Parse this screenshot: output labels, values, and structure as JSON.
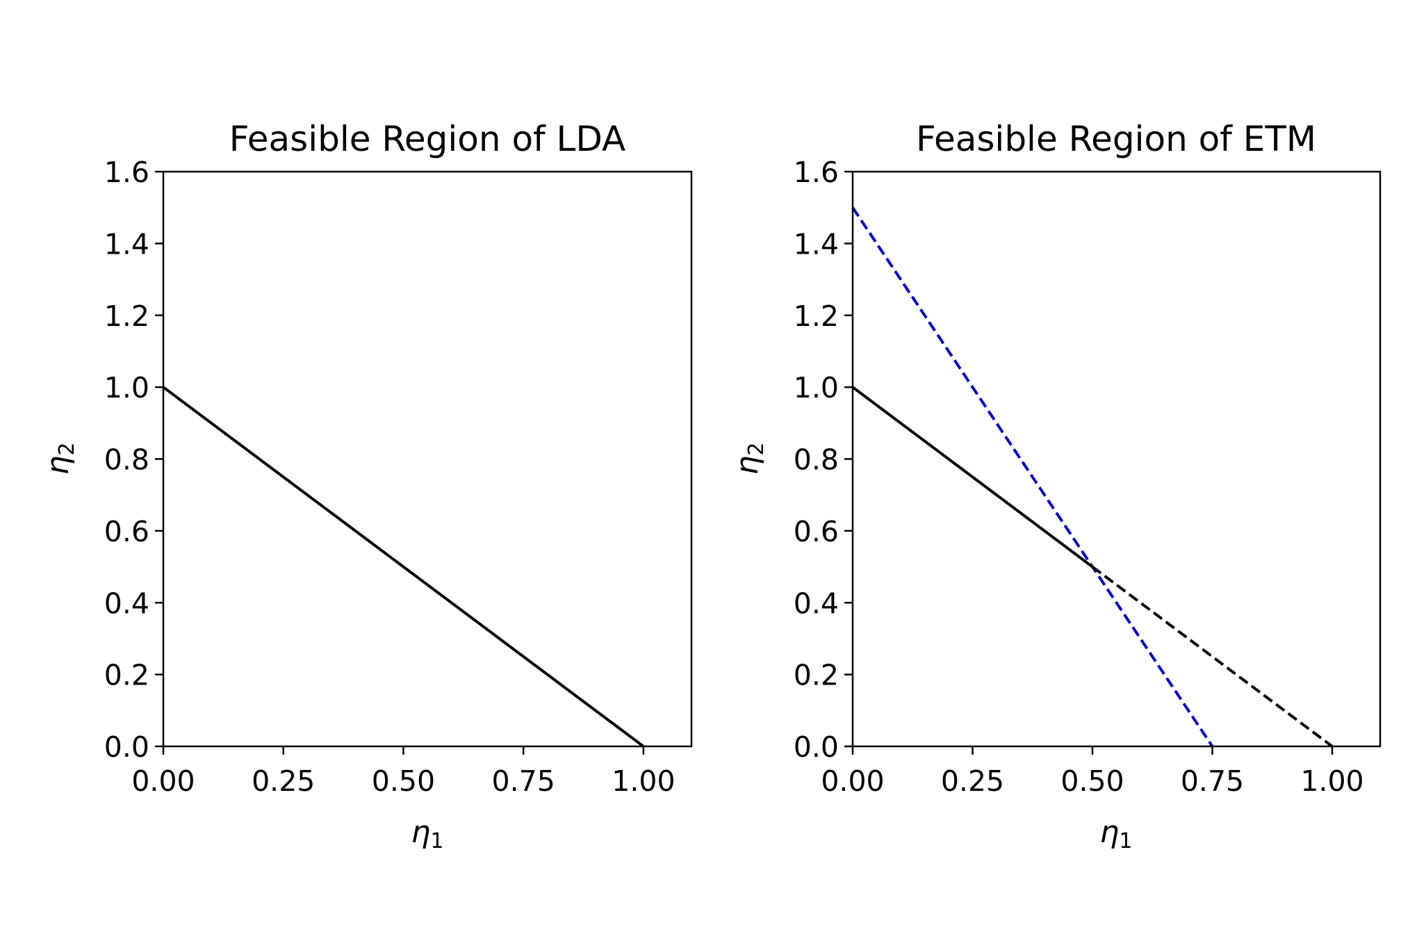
{
  "chart_data": [
    {
      "type": "line",
      "title": "Feasible Region of LDA",
      "xlabel": "η",
      "xlabel_sub": "1",
      "ylabel": "η",
      "ylabel_sub": "2",
      "xlim": [
        0,
        1.1
      ],
      "ylim": [
        0,
        1.6
      ],
      "xticks": [
        0,
        0.25,
        0.5,
        0.75,
        1.0
      ],
      "xtick_labels": [
        "0.00",
        "0.25",
        "0.50",
        "0.75",
        "1.00"
      ],
      "yticks": [
        0,
        0.2,
        0.4,
        0.6,
        0.8,
        1.0,
        1.2,
        1.4,
        1.6
      ],
      "ytick_labels": [
        "0.0",
        "0.2",
        "0.4",
        "0.6",
        "0.8",
        "1.0",
        "1.2",
        "1.4",
        "1.6"
      ],
      "grid": false,
      "series": [
        {
          "color": "#000000",
          "dash": "solid",
          "x": [
            0,
            1
          ],
          "y": [
            1,
            0
          ]
        }
      ]
    },
    {
      "type": "line",
      "title": "Feasible Region of ETM",
      "xlabel": "η",
      "xlabel_sub": "1",
      "ylabel": "η",
      "ylabel_sub": "2",
      "xlim": [
        0,
        1.1
      ],
      "ylim": [
        0,
        1.6
      ],
      "xticks": [
        0,
        0.25,
        0.5,
        0.75,
        1.0
      ],
      "xtick_labels": [
        "0.00",
        "0.25",
        "0.50",
        "0.75",
        "1.00"
      ],
      "yticks": [
        0,
        0.2,
        0.4,
        0.6,
        0.8,
        1.0,
        1.2,
        1.4,
        1.6
      ],
      "ytick_labels": [
        "0.0",
        "0.2",
        "0.4",
        "0.6",
        "0.8",
        "1.0",
        "1.2",
        "1.4",
        "1.6"
      ],
      "grid": false,
      "series": [
        {
          "color": "#0000cc",
          "dash": "dashed",
          "x": [
            0,
            0.75
          ],
          "y": [
            1.5,
            0
          ]
        },
        {
          "color": "#000000",
          "dash": "solid",
          "x": [
            0,
            0.5
          ],
          "y": [
            1,
            0.5
          ]
        },
        {
          "color": "#000000",
          "dash": "dashed",
          "x": [
            0.5,
            1
          ],
          "y": [
            0.5,
            0
          ]
        }
      ]
    }
  ]
}
